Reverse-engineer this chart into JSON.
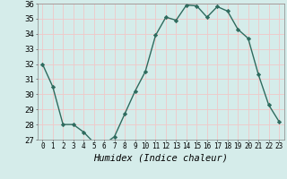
{
  "x": [
    0,
    1,
    2,
    3,
    4,
    5,
    6,
    7,
    8,
    9,
    10,
    11,
    12,
    13,
    14,
    15,
    16,
    17,
    18,
    19,
    20,
    21,
    22,
    23
  ],
  "y": [
    32,
    30.5,
    28,
    28,
    27.5,
    26.8,
    26.7,
    27.2,
    28.7,
    30.2,
    31.5,
    33.9,
    35.1,
    34.9,
    35.9,
    35.85,
    35.1,
    35.8,
    35.5,
    34.3,
    33.7,
    31.3,
    29.3,
    28.2
  ],
  "line_color": "#2e6b5e",
  "marker": "D",
  "marker_size": 2.2,
  "linewidth": 1.0,
  "bg_color": "#d5ecea",
  "grid_color": "#f0c8c8",
  "grid_color_major": "#f0c8c8",
  "xlabel": "Humidex (Indice chaleur)",
  "xlabel_fontsize": 7.5,
  "ytick_fontsize": 6.5,
  "xtick_fontsize": 5.5,
  "ylim": [
    27,
    36
  ],
  "xlim_min": -0.5,
  "xlim_max": 23.5,
  "yticks": [
    27,
    28,
    29,
    30,
    31,
    32,
    33,
    34,
    35,
    36
  ],
  "xticks": [
    0,
    1,
    2,
    3,
    4,
    5,
    6,
    7,
    8,
    9,
    10,
    11,
    12,
    13,
    14,
    15,
    16,
    17,
    18,
    19,
    20,
    21,
    22,
    23
  ]
}
